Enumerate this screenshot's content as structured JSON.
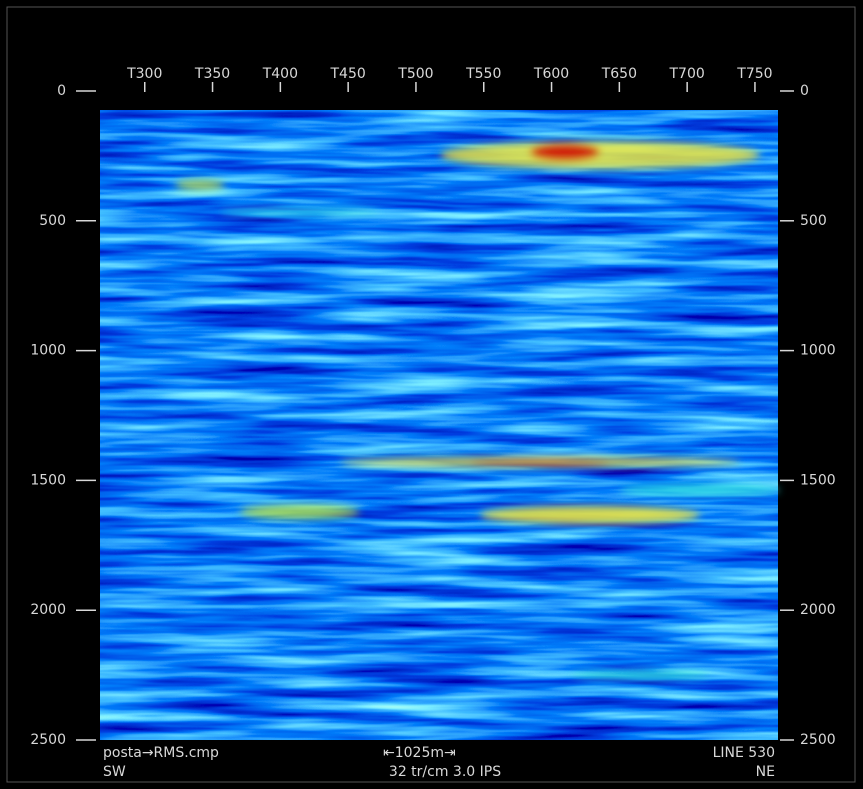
{
  "chart_data": {
    "type": "image",
    "xlim": [
      267,
      767
    ],
    "xticks": [
      {
        "value": 300,
        "label": "T300"
      },
      {
        "value": 350,
        "label": "T350"
      },
      {
        "value": 400,
        "label": "T400"
      },
      {
        "value": 450,
        "label": "T450"
      },
      {
        "value": 500,
        "label": "T500"
      },
      {
        "value": 550,
        "label": "T550"
      },
      {
        "value": 600,
        "label": "T600"
      },
      {
        "value": 650,
        "label": "T650"
      },
      {
        "value": 700,
        "label": "T700"
      },
      {
        "value": 750,
        "label": "T750"
      }
    ],
    "ylim": [
      2500,
      0
    ],
    "yticks": [
      0,
      500,
      1000,
      1500,
      2000,
      2500
    ],
    "annotations": [
      "posta→RMS.cmp",
      "⇤1025m⇥",
      "LINE 530",
      "SW",
      "32 tr/cm 3.0 IPS",
      "NE"
    ]
  }
}
